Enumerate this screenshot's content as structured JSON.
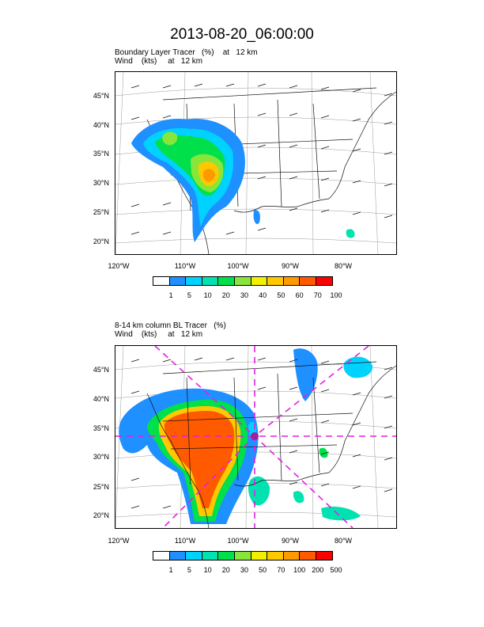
{
  "title": "2013-08-20_06:00:00",
  "colors": [
    "#ffffff",
    "#1e90ff",
    "#00d2ff",
    "#00e3b0",
    "#00e04a",
    "#88e63a",
    "#f0f000",
    "#ffc800",
    "#ff9900",
    "#ff5a00",
    "#ff0000"
  ],
  "panels": [
    {
      "title_line1": "Boundary Layer Tracer   (%)    at   12 km",
      "title_line2": "Wind    (kts)     at   12 km",
      "lat_labels": [
        "45°N",
        "40°N",
        "35°N",
        "30°N",
        "25°N",
        "20°N"
      ],
      "lon_labels": [
        "120°W",
        "110°W",
        "100°W",
        "90°W",
        "80°W"
      ],
      "colorbar_labels": [
        "1",
        "5",
        "10",
        "20",
        "30",
        "40",
        "50",
        "60",
        "70",
        "100"
      ]
    },
    {
      "title_line1": "8-14 km column BL Tracer   (%)",
      "title_line2": "Wind    (kts)     at   12 km",
      "lat_labels": [
        "45°N",
        "40°N",
        "35°N",
        "30°N",
        "25°N",
        "20°N"
      ],
      "lon_labels": [
        "120°W",
        "110°W",
        "100°W",
        "90°W",
        "80°W"
      ],
      "colorbar_labels": [
        "1",
        "5",
        "10",
        "20",
        "30",
        "50",
        "70",
        "100",
        "200",
        "500"
      ]
    }
  ]
}
